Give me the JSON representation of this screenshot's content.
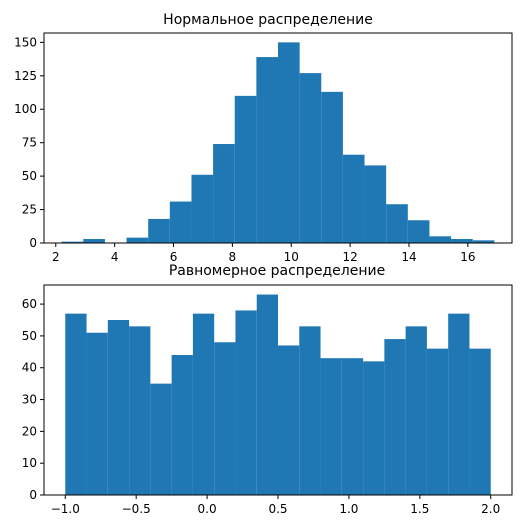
{
  "chart_data": [
    {
      "type": "bar",
      "title": "Нормальное распределение",
      "xlabel": "",
      "ylabel": "",
      "bin_edges": [
        2.2,
        2.935,
        3.67,
        4.405,
        5.14,
        5.875,
        6.61,
        7.345,
        8.08,
        8.815,
        9.55,
        10.285,
        11.02,
        11.755,
        12.49,
        13.225,
        13.96,
        14.695,
        15.43,
        16.165,
        16.9
      ],
      "values": [
        1,
        3,
        0,
        4,
        18,
        31,
        51,
        74,
        110,
        139,
        150,
        127,
        113,
        66,
        58,
        29,
        17,
        5,
        3,
        2
      ],
      "xlim": [
        1.6,
        17.5
      ],
      "ylim": [
        0,
        157
      ],
      "xticks": [
        2,
        4,
        6,
        8,
        10,
        12,
        14,
        16
      ],
      "yticks": [
        0,
        25,
        50,
        75,
        100,
        125,
        150
      ],
      "bar_color": "#1f77b4"
    },
    {
      "type": "bar",
      "title": "Равномерное распределение",
      "xlabel": "",
      "ylabel": "",
      "bin_edges": [
        -1.0,
        -0.85,
        -0.7,
        -0.55,
        -0.4,
        -0.25,
        -0.1,
        0.05,
        0.2,
        0.35,
        0.5,
        0.65,
        0.8,
        0.95,
        1.1,
        1.25,
        1.4,
        1.55,
        1.7,
        1.85,
        2.0
      ],
      "values": [
        57,
        51,
        55,
        53,
        35,
        44,
        57,
        48,
        58,
        63,
        47,
        53,
        43,
        43,
        42,
        49,
        53,
        46,
        57,
        46
      ],
      "xlim": [
        -1.15,
        2.15
      ],
      "ylim": [
        0,
        66
      ],
      "xticks": [
        -1.0,
        -0.5,
        0.0,
        0.5,
        1.0,
        1.5,
        2.0
      ],
      "xtick_labels": [
        "−1.0",
        "−0.5",
        "0.0",
        "0.5",
        "1.0",
        "1.5",
        "2.0"
      ],
      "yticks": [
        0,
        10,
        20,
        30,
        40,
        50,
        60
      ],
      "bar_color": "#1f77b4"
    }
  ]
}
